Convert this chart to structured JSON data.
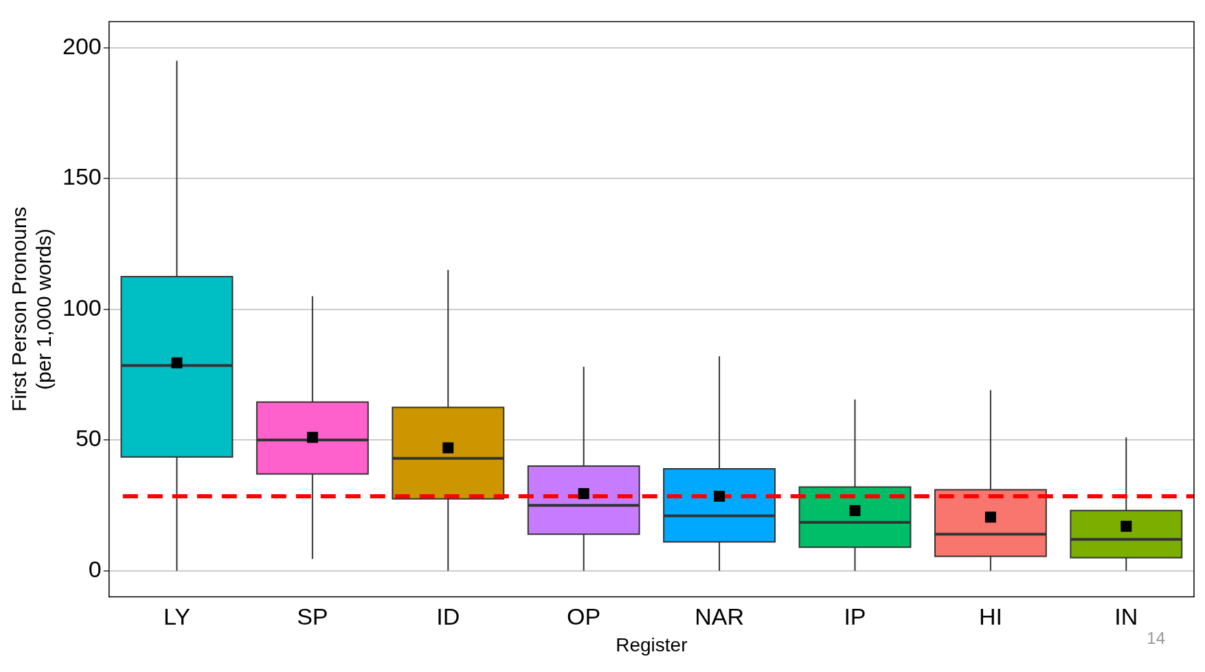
{
  "chart_data": {
    "type": "box",
    "xlabel": "Register",
    "ylabel": "First Person Pronouns\n(per 1,000 words)",
    "categories": [
      "LY",
      "SP",
      "ID",
      "OP",
      "NAR",
      "IP",
      "HI",
      "IN"
    ],
    "colors": [
      "#00bfc4",
      "#ff61cc",
      "#cd9600",
      "#c77cff",
      "#00a9ff",
      "#00be67",
      "#f8766d",
      "#7cae00"
    ],
    "boxes": [
      {
        "low": 0,
        "q1": 43.5,
        "median": 78.5,
        "q3": 112.5,
        "high": 195,
        "mean": 79.5
      },
      {
        "low": 4.5,
        "q1": 37,
        "median": 50,
        "q3": 64.5,
        "high": 105,
        "mean": 51
      },
      {
        "low": 0,
        "q1": 27.5,
        "median": 43,
        "q3": 62.5,
        "high": 115,
        "mean": 47
      },
      {
        "low": 0,
        "q1": 14,
        "median": 25,
        "q3": 40,
        "high": 78,
        "mean": 29.5
      },
      {
        "low": 0,
        "q1": 11,
        "median": 21,
        "q3": 39,
        "high": 82,
        "mean": 28.5
      },
      {
        "low": 0,
        "q1": 9,
        "median": 18.5,
        "q3": 32,
        "high": 65.5,
        "mean": 23
      },
      {
        "low": 0,
        "q1": 5.5,
        "median": 14,
        "q3": 31,
        "high": 69,
        "mean": 20.5
      },
      {
        "low": 0,
        "q1": 5,
        "median": 12,
        "q3": 23,
        "high": 51,
        "mean": 17
      }
    ],
    "ylim": [
      -10,
      210
    ],
    "yticks": [
      0,
      50,
      100,
      150,
      200
    ],
    "grid": "y",
    "legend": false,
    "ref_lines": [
      {
        "axis": "y",
        "value": 28.5,
        "color": "#ff0000",
        "line_style": "dashed"
      }
    ],
    "annotations": [
      "14"
    ]
  }
}
